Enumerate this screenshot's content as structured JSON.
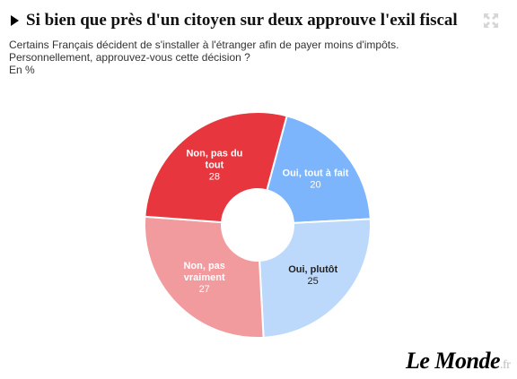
{
  "header": {
    "title": "Si bien que près d'un citoyen sur deux approuve l'exil fiscal",
    "subtitle_line1": "Certains Français décident de s'installer à l'étranger afin de payer moins d'impôts.",
    "subtitle_line2": "Personnellement, approuvez-vous cette décision ?",
    "unit": "En %"
  },
  "logo": {
    "name": "Le Monde",
    "tld": ".fr"
  },
  "icons": {
    "title_marker": "play-icon",
    "expand": "expand-icon"
  },
  "colors": {
    "oui_tout_a_fait": "#7cb5fb",
    "oui_plutot": "#bcd9fc",
    "non_pas_vraiment": "#f29b9e",
    "non_pas_du_tout": "#e8363e"
  },
  "chart_data": {
    "type": "pie",
    "donut": true,
    "unit": "%",
    "slices": [
      {
        "label": "Oui, tout à fait",
        "value": 20,
        "color": "#7cb5fb"
      },
      {
        "label": "Oui, plutôt",
        "value": 25,
        "color": "#bcd9fc"
      },
      {
        "label": "Non, pas vraiment",
        "value": 27,
        "color": "#f29b9e"
      },
      {
        "label": "Non, pas du tout",
        "value": 28,
        "color": "#e8363e"
      }
    ]
  }
}
